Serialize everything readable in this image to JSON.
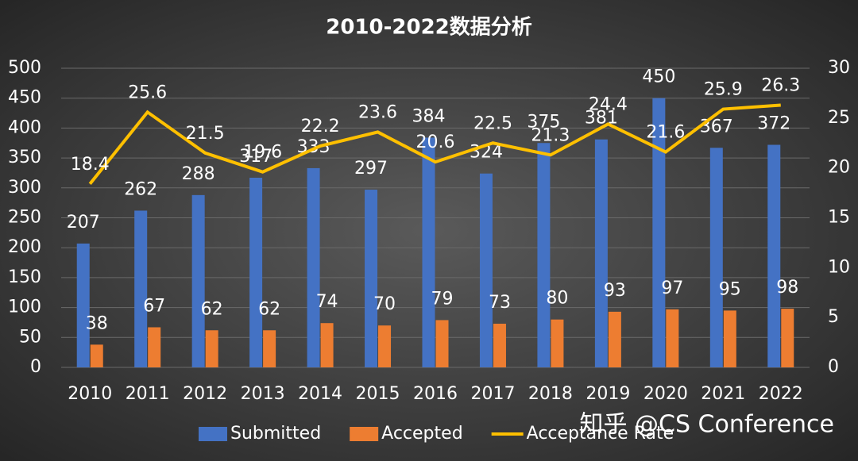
{
  "chart_data": {
    "type": "combo",
    "title": "2010-2022数据分析",
    "categories": [
      "2010",
      "2011",
      "2012",
      "2013",
      "2014",
      "2015",
      "2016",
      "2017",
      "2018",
      "2019",
      "2020",
      "2021",
      "2022"
    ],
    "series": [
      {
        "name": "Submitted",
        "type": "bar",
        "color": "#4472c4",
        "values": [
          207,
          262,
          288,
          317,
          333,
          297,
          384,
          324,
          375,
          381,
          450,
          367,
          372
        ]
      },
      {
        "name": "Accepted",
        "type": "bar",
        "color": "#ed7d31",
        "values": [
          38,
          67,
          62,
          62,
          74,
          70,
          79,
          73,
          80,
          93,
          97,
          95,
          98
        ]
      },
      {
        "name": "Acceptance Rate",
        "type": "line",
        "axis": "y2",
        "color": "#ffc000",
        "values": [
          18.4,
          25.6,
          21.5,
          19.6,
          22.2,
          23.6,
          20.6,
          22.5,
          21.3,
          24.4,
          21.6,
          25.9,
          26.3
        ]
      }
    ],
    "ylim": [
      0,
      500
    ],
    "yticks": [
      0,
      50,
      100,
      150,
      200,
      250,
      300,
      350,
      400,
      450,
      500
    ],
    "y2lim": [
      0,
      30
    ],
    "y2ticks": [
      0,
      5,
      10,
      15,
      20,
      25,
      30
    ],
    "grid": true,
    "legend": "bottom",
    "watermark": "知乎 @CS Conference"
  }
}
